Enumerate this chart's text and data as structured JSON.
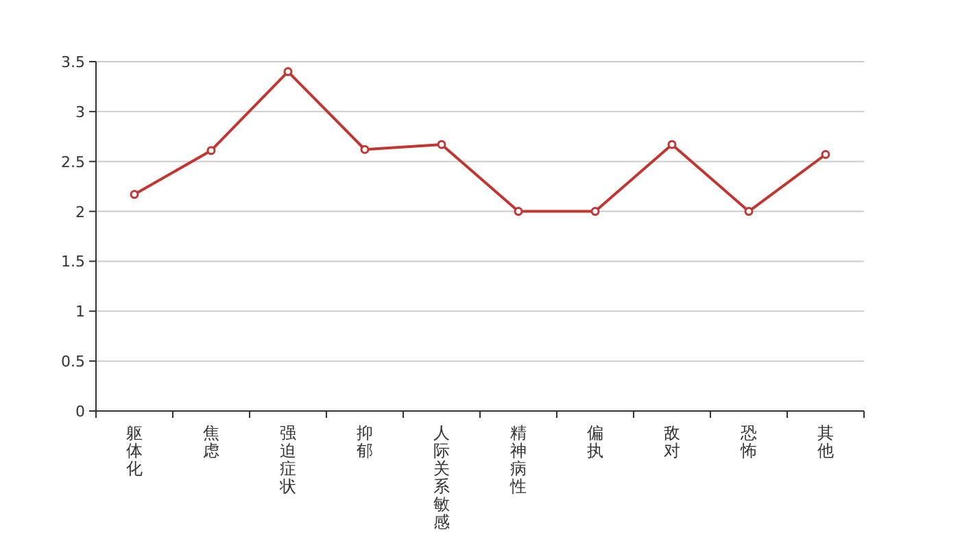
{
  "chart_data": {
    "type": "line",
    "categories": [
      "躯体化",
      "焦虑",
      "强迫症状",
      "抑郁",
      "人际关系敏感",
      "精神病性",
      "偏执",
      "敌对",
      "恐怖",
      "其他"
    ],
    "series": [
      {
        "color": "#c23531",
        "values": [
          2.17,
          2.61,
          3.4,
          2.62,
          2.67,
          2.0,
          2.0,
          2.67,
          2.0,
          2.57
        ]
      }
    ],
    "ylim": [
      0,
      3.5
    ],
    "yticks": [
      0,
      0.5,
      1,
      1.5,
      2,
      2.5,
      3,
      3.5
    ],
    "grid": "y",
    "marker": "circle",
    "line_style": "solid"
  }
}
